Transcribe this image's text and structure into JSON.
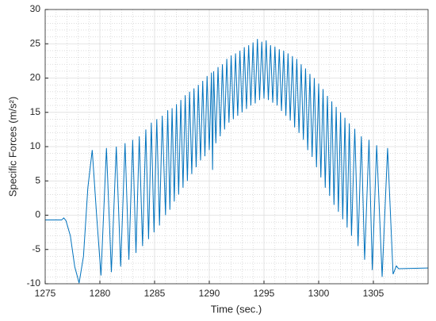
{
  "chart_data": {
    "type": "line",
    "x_label": "Time (sec.)",
    "y_label": "Specific Forces (m/s²)",
    "xlim": [
      1275,
      1310
    ],
    "xticks": [
      1275,
      1280,
      1285,
      1290,
      1295,
      1300,
      1305
    ],
    "ylim": [
      -10,
      30
    ],
    "yticks": [
      -10,
      -5,
      0,
      5,
      10,
      15,
      20,
      25,
      30
    ],
    "grid": true,
    "minor_grid": true,
    "series": [
      {
        "color": "#0072bd",
        "x": [
          1275,
          1276.5,
          1276.7,
          1276.9,
          1277.3,
          1277.7,
          1278.1,
          1278.5,
          1278.9,
          1279.3,
          1279.7,
          1280.1,
          1280.6,
          1281.05,
          1281.5,
          1281.9,
          1282.3,
          1282.65,
          1283.0,
          1283.3,
          1283.6,
          1283.9,
          1284.2,
          1284.45,
          1284.7,
          1284.95,
          1285.2,
          1285.45,
          1285.7,
          1286.0,
          1286.2,
          1286.4,
          1286.6,
          1286.8,
          1287.0,
          1287.2,
          1287.4,
          1287.6,
          1287.8,
          1288.0,
          1288.2,
          1288.4,
          1288.6,
          1288.8,
          1289.0,
          1289.2,
          1289.4,
          1289.6,
          1289.8,
          1290.0,
          1290.2,
          1290.3,
          1290.4,
          1290.6,
          1290.8,
          1291.0,
          1291.2,
          1291.4,
          1291.6,
          1291.8,
          1292.0,
          1292.2,
          1292.4,
          1292.6,
          1292.8,
          1293.0,
          1293.2,
          1293.4,
          1293.6,
          1293.8,
          1294.0,
          1294.2,
          1294.4,
          1294.6,
          1294.8,
          1295.0,
          1295.2,
          1295.4,
          1295.6,
          1295.8,
          1296.0,
          1296.2,
          1296.4,
          1296.6,
          1296.8,
          1297.0,
          1297.2,
          1297.4,
          1297.6,
          1297.8,
          1298.0,
          1298.2,
          1298.4,
          1298.6,
          1298.8,
          1299.0,
          1299.2,
          1299.4,
          1299.6,
          1299.8,
          1300.0,
          1300.2,
          1300.4,
          1300.6,
          1300.8,
          1301.0,
          1301.2,
          1301.4,
          1301.6,
          1301.8,
          1302.0,
          1302.2,
          1302.4,
          1302.6,
          1302.8,
          1303.0,
          1303.3,
          1303.6,
          1303.9,
          1304.2,
          1304.6,
          1304.9,
          1305.3,
          1305.8,
          1306.3,
          1306.8,
          1307.1,
          1307.3,
          1310
        ],
        "values": [
          -0.7,
          -0.7,
          -0.4,
          -0.8,
          -3,
          -7.5,
          -9.9,
          -6,
          4,
          9.5,
          0,
          -8.8,
          9.8,
          -8.3,
          10,
          -7.5,
          10.5,
          -6.5,
          11,
          -5.5,
          11.5,
          -4.5,
          12.5,
          -3.5,
          13.5,
          -2.5,
          14,
          -1.5,
          14.5,
          0,
          15.3,
          0.8,
          15.6,
          2,
          16.2,
          3,
          16.8,
          4,
          17.5,
          5,
          18,
          6,
          18.5,
          7,
          19,
          8,
          19.6,
          8.6,
          20.3,
          9.5,
          20.8,
          6.6,
          21,
          10.5,
          21.6,
          11.5,
          22,
          12.5,
          22.8,
          13.5,
          23.3,
          14,
          23.6,
          14.5,
          24,
          15,
          24.5,
          15.5,
          24.8,
          16,
          25.2,
          16.3,
          25.7,
          16.8,
          25.3,
          17,
          25.5,
          16.8,
          24.8,
          16.4,
          24.6,
          16,
          24.2,
          15.2,
          24,
          14.5,
          23.6,
          13.8,
          23.2,
          12.8,
          22.8,
          12,
          22,
          11,
          21.4,
          9.5,
          20.6,
          8.5,
          20,
          7,
          19.2,
          5.5,
          18.4,
          4,
          17.4,
          2.8,
          16.6,
          1.5,
          15.8,
          0.5,
          15,
          -0.6,
          14.2,
          -1.8,
          13.4,
          -3,
          12.6,
          -4.5,
          11.5,
          -6.5,
          11,
          -8,
          10.2,
          -9,
          9.8,
          -8.6,
          -7.4,
          -7.8,
          -7.7
        ]
      }
    ]
  }
}
